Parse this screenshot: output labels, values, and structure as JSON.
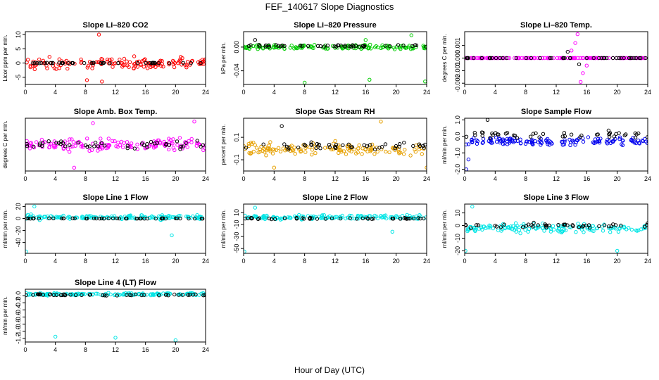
{
  "figure": {
    "title": "FEF_140617  Slope Diagnostics",
    "xlabel": "Hour of Day (UTC)"
  },
  "chart_data": [
    {
      "type": "scatter",
      "title": "Slope Li–820 CO2",
      "ylabel": "Licor ppm per min.",
      "xlim": [
        0,
        24
      ],
      "ylim": [
        -7.5,
        11
      ],
      "xticks": [
        0,
        4,
        8,
        12,
        16,
        20,
        24
      ],
      "yticks": [
        -5,
        0,
        5,
        10
      ],
      "x_tick_labels": [
        "0",
        "4",
        "8",
        "12",
        "16",
        "20",
        "24"
      ],
      "y_tick_labels": [
        "-5",
        "0",
        "5",
        "10"
      ],
      "grid": false,
      "series": [
        {
          "color": "#ff0000",
          "center": 0,
          "spread": 3.0,
          "outliers": [
            [
              9.8,
              10
            ],
            [
              10.2,
              -6.5
            ],
            [
              8.2,
              -6
            ]
          ]
        },
        {
          "color": "#000000",
          "center": 0,
          "spread": 0.15,
          "outliers": []
        }
      ]
    },
    {
      "type": "scatter",
      "title": "Slope Li–820 Pressure",
      "ylabel": "kPa per min.",
      "xlim": [
        0,
        24
      ],
      "ylim": [
        -0.063,
        0.026
      ],
      "xticks": [
        0,
        4,
        8,
        12,
        16,
        20,
        24
      ],
      "yticks": [
        -0.04,
        0.0
      ],
      "x_tick_labels": [
        "0",
        "4",
        "8",
        "12",
        "16",
        "20",
        "24"
      ],
      "y_tick_labels": [
        "-0.04",
        "0.00"
      ],
      "grid": false,
      "series": [
        {
          "color": "#00cc00",
          "center": 0,
          "spread": 0.005,
          "outliers": [
            [
              8,
              -0.06
            ],
            [
              16.5,
              -0.055
            ],
            [
              23.8,
              -0.058
            ],
            [
              22,
              0.02
            ],
            [
              16,
              0.012
            ]
          ]
        },
        {
          "color": "#000000",
          "center": 0.002,
          "spread": 0.003,
          "outliers": [
            [
              1.5,
              0.012
            ]
          ]
        }
      ]
    },
    {
      "type": "scatter",
      "title": "Slope Li–820 Temp.",
      "ylabel": "degrees C per min.",
      "xlim": [
        0,
        24
      ],
      "ylim": [
        -0.0021,
        0.0021
      ],
      "xticks": [
        0,
        4,
        8,
        12,
        16,
        20,
        24
      ],
      "yticks": [
        -0.002,
        -0.001,
        0.0,
        0.001
      ],
      "x_tick_labels": [
        "0",
        "4",
        "8",
        "12",
        "16",
        "20",
        "24"
      ],
      "y_tick_labels": [
        "-0.002",
        "-0.001",
        "0.000",
        "0.001"
      ],
      "grid": false,
      "series": [
        {
          "color": "#ff00ff",
          "center": 0,
          "spread": 0,
          "outliers": [
            [
              14.8,
              0.0019
            ],
            [
              15.2,
              -0.0019
            ],
            [
              14.5,
              0.0012
            ],
            [
              15.5,
              -0.0012
            ],
            [
              14,
              0.0006
            ],
            [
              16,
              -0.0006
            ]
          ]
        },
        {
          "color": "#000000",
          "center": 0,
          "spread": 0,
          "outliers": [
            [
              13.5,
              0.0005
            ],
            [
              15,
              -0.0005
            ]
          ]
        }
      ]
    },
    {
      "type": "scatter",
      "title": "Slope Amb. Box Temp.",
      "ylabel": "degrees C per min.",
      "xlim": [
        0,
        24
      ],
      "ylim": [
        -0.14,
        0.18
      ],
      "xticks": [
        0,
        4,
        8,
        12,
        16,
        20,
        24
      ],
      "yticks": [],
      "x_tick_labels": [
        "0",
        "4",
        "8",
        "12",
        "16",
        "20",
        "24"
      ],
      "y_tick_labels": [],
      "grid": false,
      "series": [
        {
          "color": "#ff00ff",
          "center": 0.02,
          "spread": 0.05,
          "outliers": [
            [
              6.5,
              -0.12
            ],
            [
              9,
              0.15
            ],
            [
              22.5,
              0.16
            ]
          ]
        },
        {
          "color": "#000000",
          "center": 0.02,
          "spread": 0.04,
          "outliers": []
        }
      ]
    },
    {
      "type": "scatter",
      "title": "Slope Gas Stream RH",
      "ylabel": "percent per min.",
      "xlim": [
        0,
        24
      ],
      "ylim": [
        -0.2,
        0.27
      ],
      "xticks": [
        0,
        4,
        8,
        12,
        16,
        20,
        24
      ],
      "yticks": [
        -0.1,
        0.1
      ],
      "x_tick_labels": [
        "0",
        "4",
        "8",
        "12",
        "16",
        "20",
        "24"
      ],
      "y_tick_labels": [
        "-0.1",
        "0.1"
      ],
      "grid": false,
      "series": [
        {
          "color": "#e6a000",
          "center": 0,
          "spread": 0.08,
          "outliers": [
            [
              4,
              -0.17
            ],
            [
              18,
              0.24
            ],
            [
              24,
              -0.17
            ]
          ]
        },
        {
          "color": "#000000",
          "center": 0.02,
          "spread": 0.05,
          "outliers": [
            [
              5,
              0.2
            ]
          ]
        }
      ]
    },
    {
      "type": "scatter",
      "title": "Slope Sample Flow",
      "ylabel": "ml/min per min.",
      "xlim": [
        0,
        24
      ],
      "ylim": [
        -2.1,
        1.1
      ],
      "xticks": [
        0,
        4,
        8,
        12,
        16,
        20,
        24
      ],
      "yticks": [
        -2.0,
        -1.0,
        0.0,
        1.0
      ],
      "x_tick_labels": [
        "0",
        "4",
        "8",
        "12",
        "16",
        "20",
        "24"
      ],
      "y_tick_labels": [
        "-2.0",
        "-1.0",
        "0.0",
        "1.0"
      ],
      "grid": false,
      "series": [
        {
          "color": "#0000ee",
          "center": -0.3,
          "spread": 0.35,
          "outliers": [
            [
              0.2,
              -2.0
            ],
            [
              0.5,
              -1.4
            ]
          ]
        },
        {
          "color": "#000000",
          "center": 0.1,
          "spread": 0.3,
          "outliers": [
            [
              3,
              1.0
            ]
          ]
        }
      ]
    },
    {
      "type": "scatter",
      "title": "Slope Line 1 Flow",
      "ylabel": "ml/min per min.",
      "xlim": [
        0,
        24
      ],
      "ylim": [
        -58,
        24
      ],
      "xticks": [
        0,
        4,
        8,
        12,
        16,
        20,
        24
      ],
      "yticks": [
        -40,
        -20,
        0,
        20
      ],
      "x_tick_labels": [
        "0",
        "4",
        "8",
        "12",
        "16",
        "20",
        "24"
      ],
      "y_tick_labels": [
        "-40",
        "-20",
        "0",
        "20"
      ],
      "grid": false,
      "series": [
        {
          "color": "#00e5e5",
          "center": 2,
          "spread": 5,
          "outliers": [
            [
              0.1,
              -55
            ],
            [
              1.2,
              20
            ],
            [
              19.5,
              -28
            ]
          ]
        },
        {
          "color": "#000000",
          "center": 0,
          "spread": 0.5,
          "outliers": []
        }
      ]
    },
    {
      "type": "scatter",
      "title": "Slope Line 2 Flow",
      "ylabel": "ml/min per min.",
      "xlim": [
        0,
        24
      ],
      "ylim": [
        -58,
        24
      ],
      "xticks": [
        0,
        4,
        8,
        12,
        16,
        20,
        24
      ],
      "yticks": [
        -50,
        -30,
        -10,
        10
      ],
      "x_tick_labels": [
        "0",
        "4",
        "8",
        "12",
        "16",
        "20",
        "24"
      ],
      "y_tick_labels": [
        "-50",
        "-30",
        "-10",
        "10"
      ],
      "grid": false,
      "series": [
        {
          "color": "#00e5e5",
          "center": 2,
          "spread": 5,
          "outliers": [
            [
              0.1,
              -55
            ],
            [
              1.5,
              18
            ],
            [
              19.5,
              -22
            ]
          ]
        },
        {
          "color": "#000000",
          "center": 0,
          "spread": 2,
          "outliers": []
        }
      ]
    },
    {
      "type": "scatter",
      "title": "Slope Line 3 Flow",
      "ylabel": "ml/min per min.",
      "xlim": [
        0,
        24
      ],
      "ylim": [
        -22,
        17
      ],
      "xticks": [
        0,
        4,
        8,
        12,
        16,
        20,
        24
      ],
      "yticks": [
        -20,
        -10,
        0,
        10
      ],
      "x_tick_labels": [
        "0",
        "4",
        "8",
        "12",
        "16",
        "20",
        "24"
      ],
      "y_tick_labels": [
        "-20",
        "-10",
        "0",
        "10"
      ],
      "grid": false,
      "series": [
        {
          "color": "#00e5e5",
          "center": -2,
          "spread": 5,
          "outliers": [
            [
              1,
              15
            ],
            [
              0.1,
              -20
            ],
            [
              20,
              -20
            ]
          ]
        },
        {
          "color": "#000000",
          "center": 0,
          "spread": 3,
          "outliers": []
        }
      ]
    },
    {
      "type": "scatter",
      "title": "Slope Line 4 (LT) Flow",
      "ylabel": "ml/min per min.",
      "xlim": [
        0,
        24
      ],
      "ylim": [
        -1.3,
        0.18
      ],
      "xticks": [
        0,
        4,
        8,
        12,
        16,
        20,
        24
      ],
      "yticks": [
        -1.2,
        -1.0,
        -0.8,
        -0.6,
        -0.4,
        -0.2,
        0.0
      ],
      "x_tick_labels": [
        "0",
        "4",
        "8",
        "12",
        "16",
        "20",
        "24"
      ],
      "y_tick_labels": [
        "-1.2",
        "-1.0",
        "-0.8",
        "-0.6",
        "-0.4",
        "-0.2",
        "0.0"
      ],
      "grid": false,
      "series": [
        {
          "color": "#00e5e5",
          "center": 0.04,
          "spread": 0.05,
          "outliers": [
            [
              4,
              -1.15
            ],
            [
              12,
              -1.18
            ],
            [
              20,
              -1.25
            ]
          ]
        },
        {
          "color": "#000000",
          "center": 0.02,
          "spread": 0.03,
          "outliers": []
        }
      ]
    }
  ]
}
